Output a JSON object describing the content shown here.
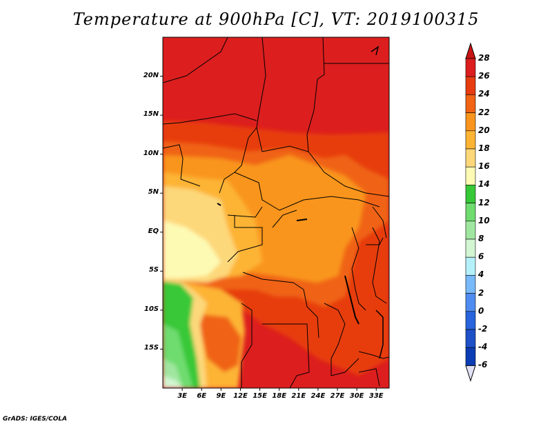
{
  "title": "Temperature at 900hPa [C], VT: 2019100315",
  "credit": "GrADS: IGES/COLA",
  "map": {
    "lat_labels": [
      "20N",
      "15N",
      "10N",
      "5N",
      "EQ",
      "5S",
      "10S",
      "15S"
    ],
    "lat_values": [
      20,
      15,
      10,
      5,
      0,
      -5,
      -10,
      -15
    ],
    "lon_labels": [
      "3E",
      "6E",
      "9E",
      "12E",
      "15E",
      "18E",
      "21E",
      "24E",
      "27E",
      "30E",
      "33E"
    ],
    "lon_values": [
      3,
      6,
      9,
      12,
      15,
      18,
      21,
      24,
      27,
      30,
      33
    ],
    "lat_range": [
      -20,
      25
    ],
    "lon_range": [
      0,
      35
    ]
  },
  "colorbar": {
    "labels": [
      "28",
      "26",
      "24",
      "22",
      "20",
      "18",
      "16",
      "14",
      "12",
      "10",
      "8",
      "6",
      "4",
      "2",
      "0",
      "-2",
      "-4",
      "-6"
    ],
    "colors": [
      "#dc1e1e",
      "#e73c0f",
      "#f06414",
      "#f9951e",
      "#fdb434",
      "#fdd87a",
      "#fdfab4",
      "#37c837",
      "#6edc6e",
      "#a0e6a0",
      "#d2f5d2",
      "#b4f0fa",
      "#78b9fa",
      "#508cf0",
      "#2864dc",
      "#1e50c8",
      "#0a3cb4",
      "#050a78"
    ],
    "top_cap_color": "#c81414",
    "bottom_cap_color": "#e1e1f5"
  }
}
